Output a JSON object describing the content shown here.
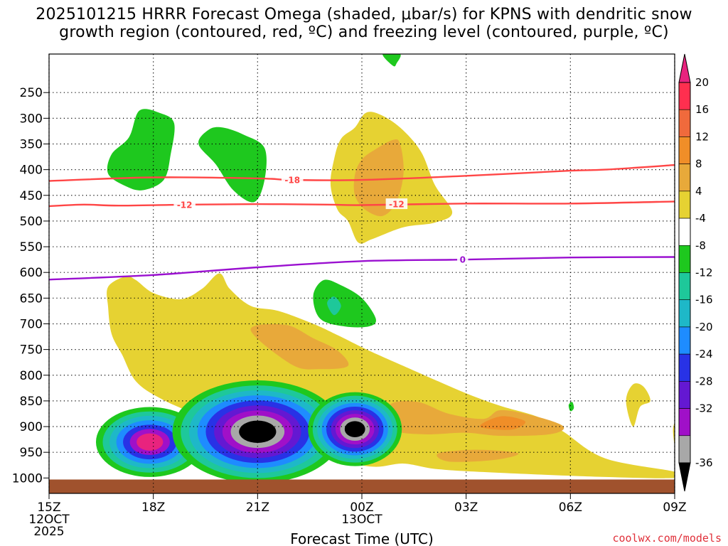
{
  "title": {
    "line1": "2025101215 HRRR Forecast Omega (shaded, μbar/s) for KPNS with dendritic snow",
    "line2": "growth region (contoured, red, ºC) and freezing level (contoured, purple, ºC)"
  },
  "credit": "coolwx.com/models",
  "chart_data": {
    "type": "contour",
    "title": "2025101215 HRRR Forecast Omega (shaded, μbar/s) for KPNS with dendritic snow growth region (contoured, red, ºC) and freezing level (contoured, purple, ºC)",
    "xlabel": "Forecast Time (UTC)",
    "ylabel": "",
    "y_ticks": [
      "250",
      "300",
      "350",
      "400",
      "450",
      "500",
      "550",
      "600",
      "650",
      "700",
      "750",
      "800",
      "850",
      "900",
      "950",
      "1000"
    ],
    "y_tick_values": [
      250,
      300,
      350,
      400,
      450,
      500,
      550,
      600,
      650,
      700,
      750,
      800,
      850,
      900,
      950,
      1000
    ],
    "y_range_hpa": [
      175,
      1030
    ],
    "x_range_hours": [
      0,
      18
    ],
    "x_ticks": [
      {
        "hour": 0,
        "lines": [
          "15Z",
          "12OCT",
          "2025"
        ]
      },
      {
        "hour": 3,
        "lines": [
          "18Z"
        ]
      },
      {
        "hour": 6,
        "lines": [
          "21Z"
        ]
      },
      {
        "hour": 9,
        "lines": [
          "00Z",
          "13OCT"
        ]
      },
      {
        "hour": 12,
        "lines": [
          "03Z"
        ]
      },
      {
        "hour": 15,
        "lines": [
          "06Z"
        ]
      },
      {
        "hour": 18,
        "lines": [
          "09Z"
        ]
      }
    ],
    "colorbar": {
      "labels": [
        "20",
        "16",
        "12",
        "8",
        "4",
        "-4",
        "-8",
        "-12",
        "-16",
        "-20",
        "-24",
        "-28",
        "-32",
        "-36"
      ],
      "colors": [
        "#ff2f4f",
        "#f06a3c",
        "#f08e28",
        "#e8a93a",
        "#e6d232",
        "#ffffff",
        "#1ec81e",
        "#1ec89a",
        "#1eb8c8",
        "#1e8cff",
        "#2832e6",
        "#6418d2",
        "#a010c8",
        "#a8a8a8"
      ],
      "top_arrow_color": "#e8237e",
      "bottom_arrow_color": "#000000"
    },
    "contours": [
      {
        "label": "-18",
        "color": "#ff4646",
        "points": [
          [
            0.0,
            422
          ],
          [
            3.0,
            415
          ],
          [
            6.0,
            417
          ],
          [
            7.0,
            420
          ],
          [
            9.0,
            420
          ],
          [
            12.0,
            412
          ],
          [
            15.0,
            402
          ],
          [
            16.0,
            400
          ],
          [
            18.0,
            391
          ]
        ]
      },
      {
        "label": "-12",
        "color": "#ff4646",
        "points": [
          [
            0.0,
            471
          ],
          [
            1.0,
            468
          ],
          [
            2.0,
            470
          ],
          [
            4.0,
            468
          ],
          [
            6.0,
            467
          ],
          [
            8.0,
            468
          ],
          [
            9.0,
            469
          ],
          [
            12.0,
            466
          ],
          [
            15.0,
            466
          ],
          [
            18.0,
            462
          ]
        ]
      },
      {
        "label": "0",
        "color": "#9a10d0",
        "points": [
          [
            0.0,
            614
          ],
          [
            3.0,
            605
          ],
          [
            6.0,
            590
          ],
          [
            9.0,
            578
          ],
          [
            12.0,
            575
          ],
          [
            15.0,
            571
          ],
          [
            18.0,
            570
          ]
        ]
      }
    ],
    "contour_labels": [
      {
        "text": "-18",
        "color": "#ff4646",
        "hour": 7.0,
        "hpa": 420
      },
      {
        "text": "-12",
        "color": "#ff4646",
        "hour": 3.9,
        "hpa": 468
      },
      {
        "text": "-12",
        "color": "#ff4646",
        "hour": 10.0,
        "hpa": 467
      },
      {
        "text": "0",
        "color": "#9a10d0",
        "hour": 11.9,
        "hpa": 575
      }
    ],
    "shaded_regions": [
      {
        "name": "upper-green-1",
        "fill": "#1ec81e",
        "points": [
          [
            1.7,
            408
          ],
          [
            1.8,
            370
          ],
          [
            2.3,
            337
          ],
          [
            2.6,
            285
          ],
          [
            3.2,
            290
          ],
          [
            3.6,
            310
          ],
          [
            3.5,
            370
          ],
          [
            3.3,
            420
          ],
          [
            2.7,
            440
          ],
          [
            2.2,
            432
          ]
        ]
      },
      {
        "name": "upper-green-2",
        "fill": "#1ec81e",
        "points": [
          [
            4.3,
            350
          ],
          [
            4.6,
            322
          ],
          [
            5.0,
            318
          ],
          [
            5.6,
            332
          ],
          [
            6.2,
            358
          ],
          [
            6.2,
            420
          ],
          [
            5.9,
            463
          ],
          [
            5.3,
            440
          ],
          [
            4.8,
            390
          ]
        ]
      },
      {
        "name": "upper-green-top",
        "fill": "#1ec81e",
        "points": [
          [
            9.6,
            175
          ],
          [
            10.1,
            175
          ],
          [
            10.0,
            193
          ],
          [
            9.9,
            198
          ]
        ]
      },
      {
        "name": "upper-yellow",
        "fill": "#e6d232",
        "points": [
          [
            8.3,
            478
          ],
          [
            8.1,
            430
          ],
          [
            8.2,
            380
          ],
          [
            8.4,
            340
          ],
          [
            8.8,
            318
          ],
          [
            9.1,
            290
          ],
          [
            9.5,
            292
          ],
          [
            10.1,
            318
          ],
          [
            10.7,
            365
          ],
          [
            11.1,
            430
          ],
          [
            11.6,
            483
          ],
          [
            11.1,
            503
          ],
          [
            10.2,
            512
          ],
          [
            9.3,
            535
          ],
          [
            8.9,
            542
          ],
          [
            8.6,
            500
          ]
        ]
      },
      {
        "name": "upper-orange",
        "fill": "#e8a93a",
        "points": [
          [
            8.8,
            410
          ],
          [
            9.0,
            380
          ],
          [
            9.4,
            360
          ],
          [
            9.9,
            342
          ],
          [
            10.1,
            350
          ],
          [
            10.2,
            405
          ],
          [
            10.0,
            462
          ],
          [
            9.6,
            490
          ],
          [
            9.1,
            478
          ],
          [
            8.8,
            450
          ]
        ]
      },
      {
        "name": "lower-yellow",
        "fill": "#e6d232",
        "points": [
          [
            1.7,
            668
          ],
          [
            1.7,
            628
          ],
          [
            2.2,
            608
          ],
          [
            2.5,
            615
          ],
          [
            3.0,
            640
          ],
          [
            3.8,
            652
          ],
          [
            4.4,
            632
          ],
          [
            4.9,
            602
          ],
          [
            5.2,
            632
          ],
          [
            5.8,
            665
          ],
          [
            6.6,
            675
          ],
          [
            7.6,
            700
          ],
          [
            8.3,
            722
          ],
          [
            9.2,
            752
          ],
          [
            10.4,
            788
          ],
          [
            11.2,
            812
          ],
          [
            12.1,
            838
          ],
          [
            13.0,
            860
          ],
          [
            14.1,
            882
          ],
          [
            14.8,
            910
          ],
          [
            16.0,
            962
          ],
          [
            18.0,
            988
          ],
          [
            18.0,
            1000
          ],
          [
            16.0,
            998
          ],
          [
            13.0,
            990
          ],
          [
            11.2,
            983
          ],
          [
            10.2,
            972
          ],
          [
            9.3,
            978
          ],
          [
            8.0,
            960
          ],
          [
            6.0,
            920
          ],
          [
            4.2,
            875
          ],
          [
            3.2,
            845
          ],
          [
            2.5,
            812
          ],
          [
            2.1,
            760
          ],
          [
            1.8,
            720
          ]
        ]
      },
      {
        "name": "lower-orange-1",
        "fill": "#e8a93a",
        "points": [
          [
            5.8,
            712
          ],
          [
            6.8,
            702
          ],
          [
            7.6,
            728
          ],
          [
            8.3,
            752
          ],
          [
            8.6,
            782
          ],
          [
            7.8,
            788
          ],
          [
            7.0,
            780
          ]
        ]
      },
      {
        "name": "lower-orange-2",
        "fill": "#e8a93a",
        "points": [
          [
            9.8,
            858
          ],
          [
            10.6,
            852
          ],
          [
            11.5,
            875
          ],
          [
            12.5,
            885
          ],
          [
            13.0,
            868
          ],
          [
            14.0,
            880
          ],
          [
            14.8,
            900
          ],
          [
            14.4,
            915
          ],
          [
            13.0,
            918
          ],
          [
            12.0,
            912
          ],
          [
            10.8,
            915
          ],
          [
            9.9,
            905
          ]
        ]
      },
      {
        "name": "lower-orange-3",
        "fill": "#f08e28",
        "points": [
          [
            12.4,
            900
          ],
          [
            13.0,
            880
          ],
          [
            13.7,
            890
          ],
          [
            13.3,
            906
          ]
        ]
      },
      {
        "name": "lower-orange-4",
        "fill": "#e8a93a",
        "points": [
          [
            11.2,
            952
          ],
          [
            12.3,
            945
          ],
          [
            13.5,
            952
          ],
          [
            12.8,
            965
          ],
          [
            11.5,
            968
          ]
        ]
      },
      {
        "name": "lower-green-blob",
        "fill": "#1ec81e",
        "points": [
          [
            7.6,
            645
          ],
          [
            7.9,
            615
          ],
          [
            8.4,
            625
          ],
          [
            9.0,
            650
          ],
          [
            9.4,
            690
          ],
          [
            9.2,
            705
          ],
          [
            8.5,
            705
          ],
          [
            7.8,
            690
          ]
        ]
      },
      {
        "name": "lower-teal-blob",
        "fill": "#1ec89a",
        "points": [
          [
            8.0,
            660
          ],
          [
            8.2,
            647
          ],
          [
            8.4,
            665
          ],
          [
            8.2,
            683
          ]
        ]
      },
      {
        "name": "small-green-dot",
        "fill": "#1ec81e",
        "points": [
          [
            14.95,
            858
          ],
          [
            15.05,
            852
          ],
          [
            15.1,
            864
          ],
          [
            15.0,
            870
          ]
        ]
      },
      {
        "name": "yellow-patch-e",
        "fill": "#e6d232",
        "points": [
          [
            16.6,
            850
          ],
          [
            16.8,
            818
          ],
          [
            17.1,
            822
          ],
          [
            17.3,
            850
          ],
          [
            17.0,
            862
          ],
          [
            16.8,
            900
          ]
        ]
      },
      {
        "name": "yellow-patch-f",
        "fill": "#e6d232",
        "points": [
          [
            17.95,
            908
          ],
          [
            18.0,
            895
          ],
          [
            18.0,
            935
          ]
        ]
      }
    ],
    "blob_rings": [
      {
        "name": "omega-core-west",
        "center": [
          2.9,
          930
        ],
        "rx_hours": 1.55,
        "ry_hpa": 68,
        "colors": [
          "#1ec81e",
          "#1ec89a",
          "#1eb8c8",
          "#1e8cff",
          "#2832e6",
          "#a010c8",
          "#e8237e"
        ]
      },
      {
        "name": "omega-core-main",
        "center": [
          6.0,
          910
        ],
        "rx_hours": 2.45,
        "ry_hpa": 100,
        "colors": [
          "#1ec81e",
          "#1ec89a",
          "#1eb8c8",
          "#1e8cff",
          "#2832e6",
          "#6418d2",
          "#a010c8",
          "#a8a8a8",
          "#000000"
        ]
      },
      {
        "name": "omega-core-east",
        "center": [
          8.8,
          905
        ],
        "rx_hours": 1.35,
        "ry_hpa": 72,
        "colors": [
          "#1ec81e",
          "#1ec89a",
          "#1eb8c8",
          "#1e8cff",
          "#2832e6",
          "#6418d2",
          "#a010c8",
          "#a8a8a8",
          "#000000"
        ]
      }
    ],
    "ground_level_hpa": 1003
  }
}
